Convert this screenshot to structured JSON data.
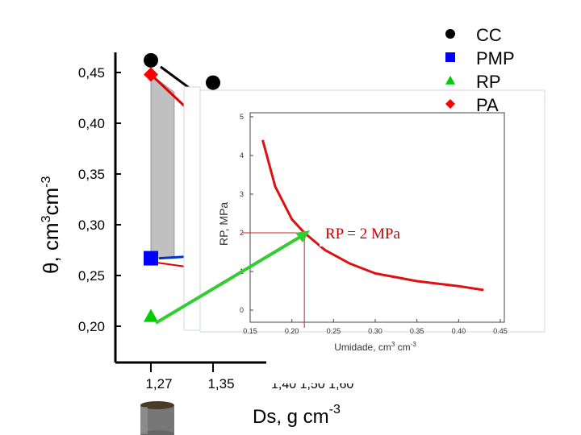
{
  "chart_data": [
    {
      "type": "scatter",
      "title": "",
      "xlabel": "Ds, g cm-3",
      "ylabel": "θ, cm3cm-3",
      "ylim": [
        0.19,
        0.47
      ],
      "x_ticks": [
        "1,27",
        "1,35"
      ],
      "y_ticks": [
        "0,45",
        "0,40",
        "0,35",
        "0,30",
        "0,25",
        "0,20"
      ],
      "legend": [
        "CC",
        "PMP",
        "RP",
        "PA"
      ],
      "legend_position": "top-right",
      "series": [
        {
          "name": "CC",
          "marker": "circle",
          "color": "#000000",
          "x": [
            1.27,
            1.35
          ],
          "y": [
            0.462,
            0.44
          ]
        },
        {
          "name": "PMP",
          "marker": "square",
          "color": "#0000ff",
          "x": [
            1.27
          ],
          "y": [
            0.267
          ]
        },
        {
          "name": "RP",
          "marker": "triangle",
          "color": "#00cc00",
          "x": [
            1.27
          ],
          "y": [
            0.21
          ]
        },
        {
          "name": "PA",
          "marker": "diamond",
          "color": "#ff0000",
          "x": [
            1.27
          ],
          "y": [
            0.448
          ]
        }
      ],
      "shaded_region": {
        "color": "#c0c0c0",
        "x": [
          1.27,
          1.3
        ],
        "y_top": 0.448,
        "y_bottom": 0.267
      }
    },
    {
      "type": "line",
      "title": "",
      "xlabel": "Umidade, cm3 cm-3",
      "ylabel": "RP, MPa",
      "xlim": [
        0.15,
        0.45
      ],
      "ylim": [
        0,
        5
      ],
      "x_ticks": [
        "0.15",
        "0.20",
        "0.25",
        "0.30",
        "0.35",
        "0.40",
        "0.45"
      ],
      "y_ticks": [
        "0",
        "1",
        "2",
        "3",
        "4",
        "5"
      ],
      "annotation": "RP = 2 MPa",
      "reference": {
        "x": 0.215,
        "y": 2
      },
      "series": [
        {
          "color": "#dd1111",
          "x": [
            0.165,
            0.18,
            0.2,
            0.215,
            0.24,
            0.27,
            0.3,
            0.35,
            0.4,
            0.43
          ],
          "y": [
            4.4,
            3.2,
            2.35,
            2.0,
            1.55,
            1.2,
            0.95,
            0.75,
            0.62,
            0.52
          ]
        }
      ]
    }
  ],
  "bottom_labels": {
    "partial_ticks": "1,40  1,50  1,60"
  }
}
